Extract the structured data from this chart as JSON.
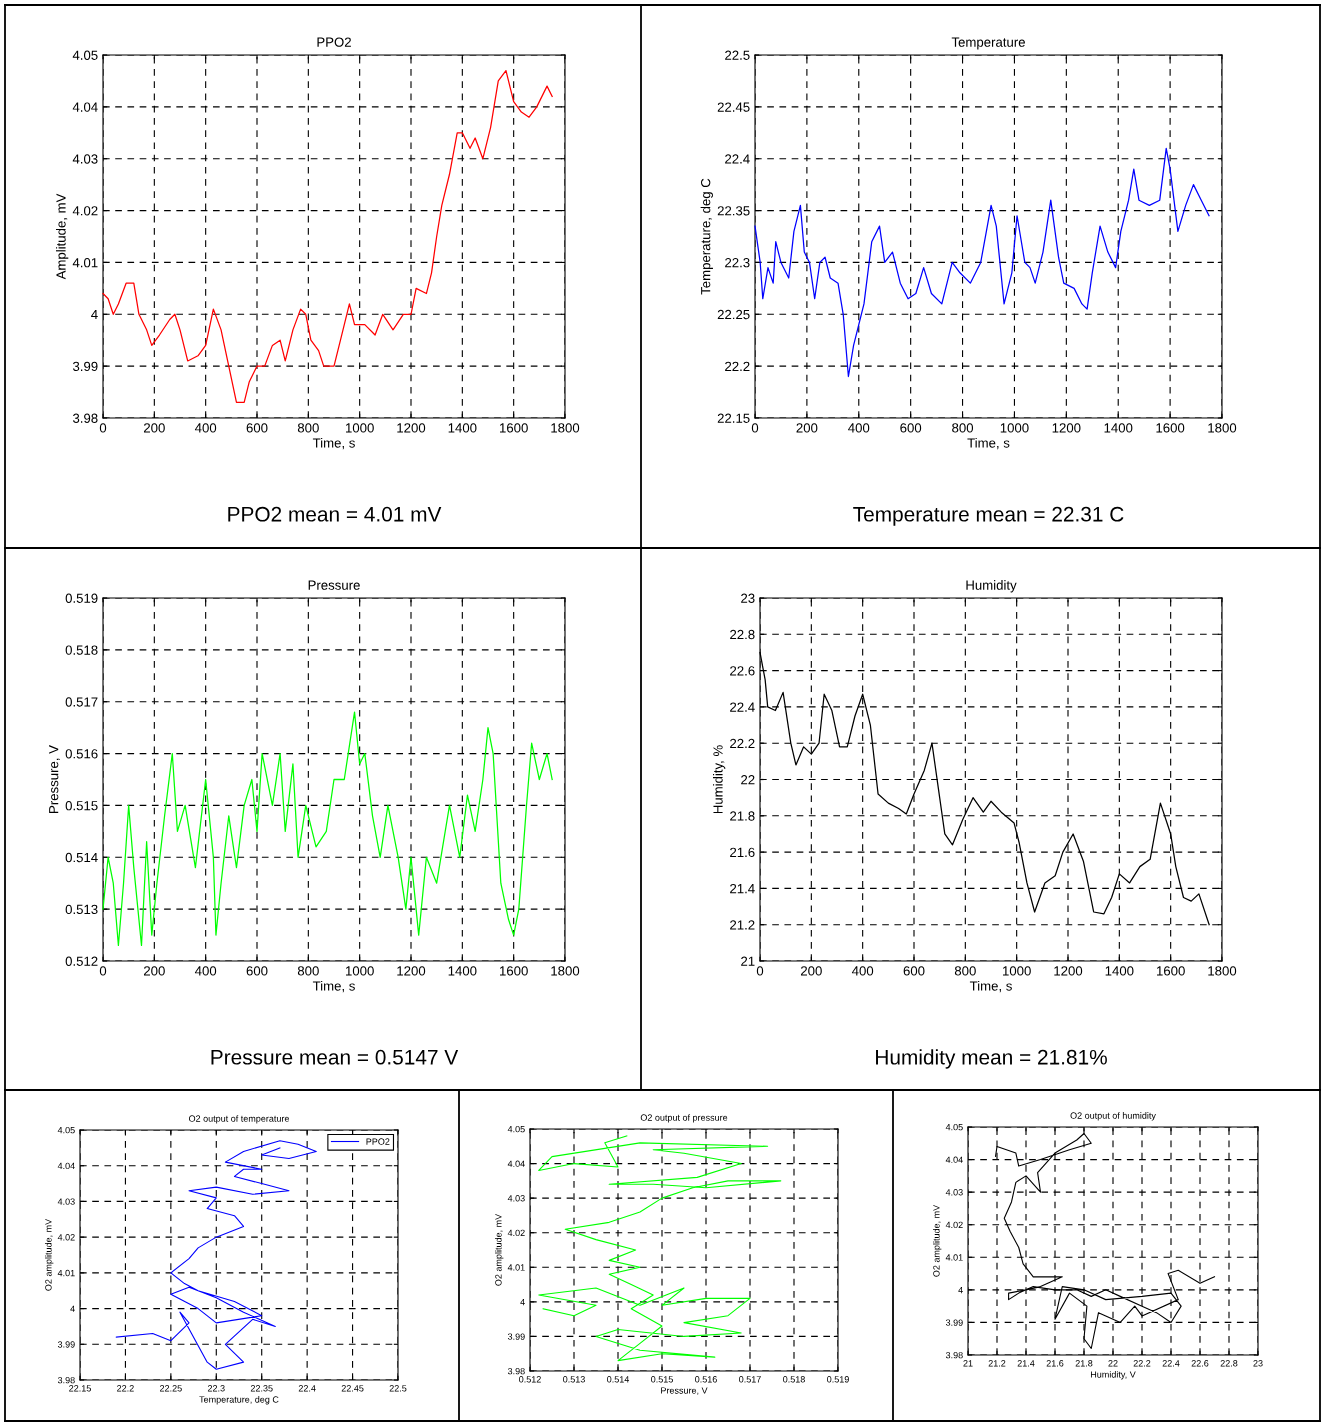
{
  "chart_data": [
    {
      "type": "line",
      "title": "PPO2",
      "xlabel": "Time, s",
      "ylabel": "Amplitude, mV",
      "annotations": [
        "PPO2 mean = 4.01 mV"
      ],
      "grid": true,
      "xlim": [
        0,
        1800
      ],
      "ylim": [
        3.98,
        4.05
      ],
      "xticks": [
        0,
        200,
        400,
        600,
        800,
        1000,
        1200,
        1400,
        1600,
        1800
      ],
      "yticks": [
        3.98,
        3.99,
        4,
        4.01,
        4.02,
        4.03,
        4.04,
        4.05
      ],
      "x": [
        0,
        20,
        40,
        60,
        90,
        120,
        140,
        170,
        190,
        220,
        260,
        280,
        300,
        330,
        370,
        400,
        430,
        460,
        490,
        520,
        550,
        570,
        600,
        630,
        660,
        690,
        710,
        740,
        770,
        790,
        810,
        840,
        860,
        900,
        930,
        960,
        980,
        1020,
        1060,
        1090,
        1130,
        1170,
        1200,
        1220,
        1260,
        1280,
        1300,
        1320,
        1350,
        1380,
        1400,
        1430,
        1450,
        1480,
        1510,
        1540,
        1570,
        1600,
        1630,
        1660,
        1690,
        1730,
        1750
      ],
      "series": [
        {
          "color": "#ff0000",
          "values": [
            4.004,
            4.003,
            4.0,
            4.002,
            4.006,
            4.006,
            4.0,
            3.997,
            3.994,
            3.996,
            3.999,
            4.0,
            3.997,
            3.991,
            3.992,
            3.994,
            4.001,
            3.997,
            3.99,
            3.983,
            3.983,
            3.987,
            3.99,
            3.99,
            3.994,
            3.995,
            3.991,
            3.997,
            4.001,
            4.0,
            3.995,
            3.993,
            3.99,
            3.99,
            3.996,
            4.002,
            3.998,
            3.998,
            3.996,
            4.0,
            3.997,
            4.0,
            4.0,
            4.005,
            4.004,
            4.008,
            4.015,
            4.021,
            4.027,
            4.035,
            4.035,
            4.032,
            4.034,
            4.03,
            4.036,
            4.045,
            4.047,
            4.041,
            4.039,
            4.038,
            4.04,
            4.044,
            4.042
          ]
        }
      ]
    },
    {
      "type": "line",
      "title": "Temperature",
      "xlabel": "Time, s",
      "ylabel": "Temperature, deg C",
      "annotations": [
        "Temperature mean = 22.31 C"
      ],
      "grid": true,
      "xlim": [
        0,
        1800
      ],
      "ylim": [
        22.15,
        22.5
      ],
      "xticks": [
        0,
        200,
        400,
        600,
        800,
        1000,
        1200,
        1400,
        1600,
        1800
      ],
      "yticks": [
        22.15,
        22.2,
        22.25,
        22.3,
        22.35,
        22.4,
        22.45,
        22.5
      ],
      "x": [
        0,
        20,
        30,
        50,
        70,
        80,
        100,
        130,
        150,
        175,
        190,
        210,
        230,
        250,
        270,
        290,
        320,
        340,
        360,
        380,
        400,
        420,
        450,
        480,
        500,
        530,
        560,
        590,
        620,
        650,
        680,
        720,
        760,
        790,
        830,
        870,
        910,
        930,
        960,
        990,
        1010,
        1040,
        1060,
        1080,
        1110,
        1140,
        1170,
        1190,
        1230,
        1260,
        1280,
        1300,
        1330,
        1360,
        1390,
        1410,
        1440,
        1460,
        1480,
        1520,
        1560,
        1585,
        1600,
        1630,
        1660,
        1690,
        1720,
        1750
      ],
      "series": [
        {
          "color": "#0000ff",
          "values": [
            22.335,
            22.3,
            22.265,
            22.295,
            22.28,
            22.32,
            22.3,
            22.285,
            22.33,
            22.355,
            22.31,
            22.3,
            22.265,
            22.3,
            22.305,
            22.285,
            22.28,
            22.25,
            22.19,
            22.22,
            22.24,
            22.26,
            22.32,
            22.335,
            22.3,
            22.31,
            22.28,
            22.265,
            22.27,
            22.295,
            22.27,
            22.26,
            22.3,
            22.29,
            22.28,
            22.3,
            22.355,
            22.335,
            22.26,
            22.29,
            22.345,
            22.3,
            22.295,
            22.28,
            22.31,
            22.36,
            22.305,
            22.28,
            22.275,
            22.26,
            22.255,
            22.29,
            22.335,
            22.31,
            22.295,
            22.33,
            22.36,
            22.39,
            22.36,
            22.355,
            22.36,
            22.41,
            22.39,
            22.33,
            22.355,
            22.375,
            22.36,
            22.345
          ]
        }
      ]
    },
    {
      "type": "line",
      "title": "Pressure",
      "xlabel": "Time, s",
      "ylabel": "Pressure, V",
      "annotations": [
        "Pressure mean = 0.5147 V"
      ],
      "grid": true,
      "xlim": [
        0,
        1800
      ],
      "ylim": [
        0.512,
        0.519
      ],
      "xticks": [
        0,
        200,
        400,
        600,
        800,
        1000,
        1200,
        1400,
        1600,
        1800
      ],
      "yticks": [
        0.512,
        0.513,
        0.514,
        0.515,
        0.516,
        0.517,
        0.518,
        0.519
      ],
      "x": [
        0,
        20,
        40,
        60,
        80,
        100,
        120,
        150,
        170,
        190,
        210,
        240,
        270,
        290,
        320,
        360,
        400,
        430,
        440,
        460,
        490,
        520,
        550,
        580,
        600,
        620,
        660,
        690,
        710,
        740,
        760,
        790,
        830,
        870,
        900,
        940,
        980,
        1000,
        1020,
        1050,
        1080,
        1110,
        1150,
        1180,
        1200,
        1230,
        1260,
        1300,
        1350,
        1390,
        1420,
        1450,
        1480,
        1500,
        1520,
        1550,
        1580,
        1600,
        1620,
        1650,
        1670,
        1700,
        1730,
        1750
      ],
      "series": [
        {
          "color": "#00ff00",
          "values": [
            0.513,
            0.514,
            0.5135,
            0.5123,
            0.5135,
            0.515,
            0.5138,
            0.5123,
            0.5143,
            0.5125,
            0.5135,
            0.5148,
            0.516,
            0.5145,
            0.515,
            0.5138,
            0.5155,
            0.514,
            0.5125,
            0.5135,
            0.5148,
            0.5138,
            0.515,
            0.5155,
            0.5145,
            0.516,
            0.515,
            0.516,
            0.5145,
            0.5158,
            0.514,
            0.515,
            0.5142,
            0.5145,
            0.5155,
            0.5155,
            0.5168,
            0.5158,
            0.516,
            0.5148,
            0.514,
            0.515,
            0.514,
            0.513,
            0.514,
            0.5125,
            0.514,
            0.5135,
            0.515,
            0.514,
            0.5152,
            0.5145,
            0.5155,
            0.5165,
            0.516,
            0.5135,
            0.5128,
            0.5125,
            0.513,
            0.515,
            0.5162,
            0.5155,
            0.516,
            0.5155
          ]
        }
      ]
    },
    {
      "type": "line",
      "title": "Humidity",
      "xlabel": "Time, s",
      "ylabel": "Humidity, %",
      "annotations": [
        "Humidity mean = 21.81%"
      ],
      "grid": true,
      "xlim": [
        0,
        1800
      ],
      "ylim": [
        21,
        23
      ],
      "xticks": [
        0,
        200,
        400,
        600,
        800,
        1000,
        1200,
        1400,
        1600,
        1800
      ],
      "yticks": [
        21,
        21.2,
        21.4,
        21.6,
        21.8,
        22,
        22.2,
        22.4,
        22.6,
        22.8,
        23
      ],
      "x": [
        0,
        20,
        30,
        60,
        90,
        120,
        140,
        170,
        200,
        230,
        250,
        280,
        310,
        340,
        370,
        400,
        430,
        460,
        500,
        540,
        570,
        600,
        640,
        670,
        700,
        720,
        750,
        790,
        830,
        870,
        900,
        940,
        990,
        1010,
        1040,
        1070,
        1110,
        1150,
        1180,
        1220,
        1260,
        1300,
        1340,
        1370,
        1400,
        1440,
        1480,
        1520,
        1560,
        1600,
        1620,
        1650,
        1680,
        1710,
        1750
      ],
      "series": [
        {
          "color": "#000000",
          "values": [
            22.7,
            22.55,
            22.4,
            22.38,
            22.48,
            22.2,
            22.08,
            22.18,
            22.14,
            22.2,
            22.47,
            22.38,
            22.18,
            22.18,
            22.35,
            22.47,
            22.3,
            21.92,
            21.87,
            21.84,
            21.81,
            21.92,
            22.05,
            22.2,
            21.9,
            21.7,
            21.64,
            21.78,
            21.9,
            21.82,
            21.88,
            21.82,
            21.76,
            21.65,
            21.43,
            21.27,
            21.43,
            21.47,
            21.6,
            21.7,
            21.55,
            21.27,
            21.26,
            21.35,
            21.48,
            21.43,
            21.52,
            21.56,
            21.87,
            21.7,
            21.52,
            21.35,
            21.33,
            21.37,
            21.2
          ]
        }
      ]
    },
    {
      "type": "line",
      "title": "O2 output of temperature",
      "xlabel": "Temperature, deg C",
      "ylabel": "O2 amplitude, mV",
      "grid": true,
      "legend": "top right",
      "xlim": [
        22.15,
        22.5
      ],
      "ylim": [
        3.98,
        4.05
      ],
      "xticks": [
        22.15,
        22.2,
        22.25,
        22.3,
        22.35,
        22.4,
        22.45,
        22.5
      ],
      "yticks": [
        3.98,
        3.99,
        4,
        4.01,
        4.02,
        4.03,
        4.04,
        4.05
      ],
      "series": [
        {
          "name": "PPO2",
          "color": "#0000ff",
          "x": [
            22.19,
            22.23,
            22.25,
            22.27,
            22.26,
            22.29,
            22.3,
            22.33,
            22.31,
            22.34,
            22.365,
            22.33,
            22.3,
            22.27,
            22.25,
            22.28,
            22.3,
            22.35,
            22.32,
            22.28,
            22.265,
            22.25,
            22.27,
            22.28,
            22.3,
            22.33,
            22.32,
            22.29,
            22.3,
            22.27,
            22.3,
            22.34,
            22.38,
            22.35,
            22.32,
            22.33,
            22.35,
            22.31,
            22.33,
            22.37,
            22.39,
            22.41,
            22.38,
            22.35,
            22.37
          ],
          "values": [
            3.992,
            3.993,
            3.991,
            3.996,
            3.999,
            3.985,
            3.983,
            3.985,
            3.99,
            3.997,
            3.995,
            3.999,
            4.003,
            4.006,
            4.004,
            4.0,
            3.996,
            3.998,
            4.002,
            4.005,
            4.007,
            4.01,
            4.014,
            4.017,
            4.02,
            4.023,
            4.026,
            4.028,
            4.031,
            4.033,
            4.034,
            4.032,
            4.033,
            4.035,
            4.037,
            4.039,
            4.039,
            4.041,
            4.044,
            4.047,
            4.046,
            4.044,
            4.042,
            4.043,
            4.045
          ]
        }
      ]
    },
    {
      "type": "line",
      "title": "O2 output of pressure",
      "xlabel": "Pressure, V",
      "ylabel": "O2 amplitude, mV",
      "grid": true,
      "xlim": [
        0.512,
        0.519
      ],
      "ylim": [
        3.98,
        4.05
      ],
      "xticks": [
        0.512,
        0.513,
        0.514,
        0.515,
        0.516,
        0.517,
        0.518,
        0.519
      ],
      "yticks": [
        3.98,
        3.99,
        4,
        4.01,
        4.02,
        4.03,
        4.04,
        4.05
      ],
      "series": [
        {
          "color": "#00ff00",
          "x": [
            0.5123,
            0.513,
            0.5135,
            0.5122,
            0.5135,
            0.5145,
            0.5155,
            0.515,
            0.516,
            0.517,
            0.5165,
            0.5155,
            0.5168,
            0.5155,
            0.514,
            0.5135,
            0.5145,
            0.5162,
            0.515,
            0.514,
            0.5145,
            0.515,
            0.5143,
            0.5148,
            0.5143,
            0.5138,
            0.5145,
            0.5138,
            0.5144,
            0.5135,
            0.5128,
            0.5138,
            0.5145,
            0.515,
            0.5157,
            0.5165,
            0.5177,
            0.516,
            0.5148,
            0.5138,
            0.5158,
            0.5168,
            0.5155,
            0.5148,
            0.5174,
            0.5145,
            0.5125,
            0.5122,
            0.513,
            0.514,
            0.5137,
            0.5142
          ],
          "values": [
            3.998,
            3.996,
            3.999,
            4.002,
            4.004,
            3.999,
            4.004,
            3.999,
            4.001,
            4.001,
            3.996,
            3.994,
            3.991,
            3.99,
            3.992,
            3.99,
            3.986,
            3.984,
            3.985,
            3.983,
            3.988,
            3.993,
            3.998,
            4.002,
            4.005,
            4.008,
            4.01,
            4.012,
            4.015,
            4.018,
            4.021,
            4.023,
            4.026,
            4.03,
            4.033,
            4.035,
            4.035,
            4.033,
            4.034,
            4.034,
            4.036,
            4.04,
            4.043,
            4.044,
            4.045,
            4.046,
            4.042,
            4.038,
            4.04,
            4.039,
            4.046,
            4.048
          ]
        }
      ]
    },
    {
      "type": "line",
      "title": "O2 output of humidity",
      "xlabel": "Humidity, V",
      "ylabel": "O2 amplitude, mV",
      "grid": true,
      "xlim": [
        21,
        23
      ],
      "ylim": [
        3.98,
        4.05
      ],
      "xticks": [
        21,
        21.2,
        21.4,
        21.6,
        21.8,
        22,
        22.2,
        22.4,
        22.6,
        22.8,
        23
      ],
      "yticks": [
        3.98,
        3.99,
        4,
        4.01,
        4.02,
        4.03,
        4.04,
        4.05
      ],
      "series": [
        {
          "color": "#000000",
          "x": [
            22.7,
            22.6,
            22.45,
            22.38,
            22.45,
            22.2,
            22.15,
            22.05,
            21.9,
            21.85,
            21.8,
            21.82,
            21.7,
            21.6,
            21.65,
            21.8,
            21.95,
            22.2,
            22.4,
            22.47,
            22.4,
            22.3,
            22.2,
            22.05,
            21.95,
            21.85,
            21.75,
            21.6,
            21.45,
            21.35,
            21.28,
            21.28,
            21.4,
            21.5,
            21.65,
            21.45,
            21.38,
            21.35,
            21.29,
            21.25,
            21.3,
            21.33,
            21.4,
            21.5,
            21.48,
            21.6,
            21.75,
            21.8,
            21.85,
            21.7,
            21.5,
            21.35,
            21.33,
            21.2,
            21.19
          ],
          "values": [
            4.004,
            4.002,
            4.006,
            4.005,
            3.997,
            3.992,
            3.995,
            3.99,
            3.993,
            3.982,
            3.985,
            3.995,
            3.999,
            3.991,
            4.001,
            4.0,
            3.997,
            3.998,
            3.999,
            3.995,
            3.99,
            3.993,
            3.995,
            3.998,
            4.0,
            3.998,
            4.0,
            4.0,
            4.001,
            3.999,
            3.997,
            3.999,
            4.0,
            4.001,
            4.004,
            4.004,
            4.008,
            4.013,
            4.018,
            4.022,
            4.027,
            4.033,
            4.035,
            4.03,
            4.036,
            4.042,
            4.046,
            4.048,
            4.045,
            4.043,
            4.04,
            4.038,
            4.042,
            4.044,
            4.041
          ]
        }
      ]
    }
  ]
}
